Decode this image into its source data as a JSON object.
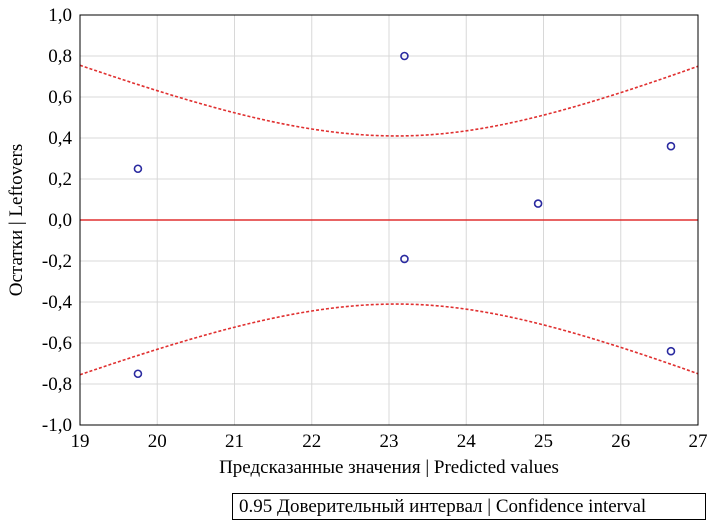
{
  "chart_data": {
    "type": "scatter",
    "xlabel": "Предсказанные значения | Predicted values",
    "ylabel": "Остатки | Leftovers",
    "xlim": [
      19,
      27
    ],
    "ylim": [
      -1.0,
      1.0
    ],
    "x_ticks": [
      19,
      20,
      21,
      22,
      23,
      24,
      25,
      26,
      27
    ],
    "y_ticks": [
      1.0,
      0.8,
      0.6,
      0.4,
      0.2,
      0.0,
      -0.2,
      -0.4,
      -0.6,
      -0.8,
      -1.0
    ],
    "y_tick_labels": [
      "1,0",
      "0,8",
      "0,6",
      "0,4",
      "0,2",
      "0,0",
      "-0,2",
      "-0,4",
      "-0,6",
      "-0,8",
      "-1,0"
    ],
    "grid": true,
    "points": [
      {
        "x": 19.75,
        "y": 0.25
      },
      {
        "x": 19.75,
        "y": -0.75
      },
      {
        "x": 23.2,
        "y": 0.8
      },
      {
        "x": 23.2,
        "y": -0.19
      },
      {
        "x": 24.93,
        "y": 0.08
      },
      {
        "x": 26.65,
        "y": 0.36
      },
      {
        "x": 26.65,
        "y": -0.64
      }
    ],
    "zero_line": 0.0,
    "confidence_band": {
      "center_x": 23.1,
      "min_halfwidth": 0.41,
      "halfwidth_at_19": 0.755,
      "halfwidth_at_27": 0.75
    },
    "legend": "0.95 Доверительный интервал | Confidence interval",
    "legend_position": "bottom-right",
    "colors": {
      "points": "#2a2aa0",
      "zero_line": "#e03030",
      "confidence": "#e03030",
      "grid": "#d8d8d8"
    }
  }
}
